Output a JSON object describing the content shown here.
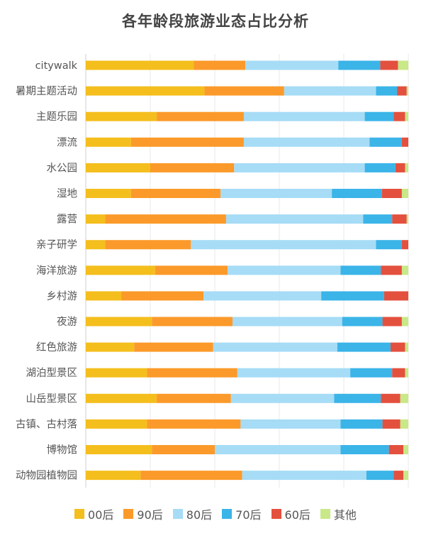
{
  "chart_data": {
    "type": "bar",
    "orientation": "horizontal",
    "stacked": "percent",
    "title": "各年龄段旅游业态占比分析",
    "xlabel": "",
    "ylabel": "",
    "xlim": [
      0,
      100
    ],
    "grid": true,
    "legend_position": "bottom",
    "categories": [
      "citywalk",
      "暑期主题活动",
      "主题乐园",
      "漂流",
      "水公园",
      "湿地",
      "露营",
      "亲子研学",
      "海洋旅游",
      "乡村游",
      "夜游",
      "红色旅游",
      "湖泊型景区",
      "山岳型景区",
      "古镇、古村落",
      "博物馆",
      "动物园植物园"
    ],
    "series": [
      {
        "name": "00后",
        "color": "#F4BE1D",
        "values": [
          33.5,
          36.8,
          22,
          14,
          20,
          14,
          6,
          6,
          21.5,
          11,
          20.5,
          15,
          19,
          22,
          19,
          20.5,
          17
        ]
      },
      {
        "name": "90后",
        "color": "#FB9A2A",
        "values": [
          16,
          24.7,
          27,
          35,
          26,
          27.8,
          37.5,
          26.6,
          22.5,
          25.5,
          25,
          24.5,
          28,
          23,
          29,
          19.5,
          31.5
        ]
      },
      {
        "name": "80后",
        "color": "#A6DCF6",
        "values": [
          28.8,
          28.5,
          37.5,
          39,
          40.5,
          34.5,
          42.5,
          57.4,
          35,
          36.5,
          34,
          38.5,
          35,
          32,
          31,
          39,
          38.5
        ]
      },
      {
        "name": "70后",
        "color": "#3BB4E8",
        "values": [
          13,
          6.5,
          9,
          10,
          9.5,
          15.5,
          9,
          8,
          12.5,
          19.5,
          12.5,
          16.5,
          13,
          14.5,
          13,
          15,
          8.5
        ]
      },
      {
        "name": "60后",
        "color": "#E4503E",
        "values": [
          5.5,
          3,
          3.5,
          2,
          3,
          6.2,
          4.5,
          2,
          6.5,
          7.5,
          6,
          4.5,
          4,
          6,
          5.5,
          4.5,
          3
        ]
      },
      {
        "name": "其他",
        "color": "#C9E887",
        "values": [
          3.2,
          0.5,
          1,
          0,
          1,
          2,
          0.5,
          0,
          2,
          0,
          2,
          1,
          1,
          2.5,
          2.5,
          1.5,
          1.5
        ]
      }
    ]
  }
}
